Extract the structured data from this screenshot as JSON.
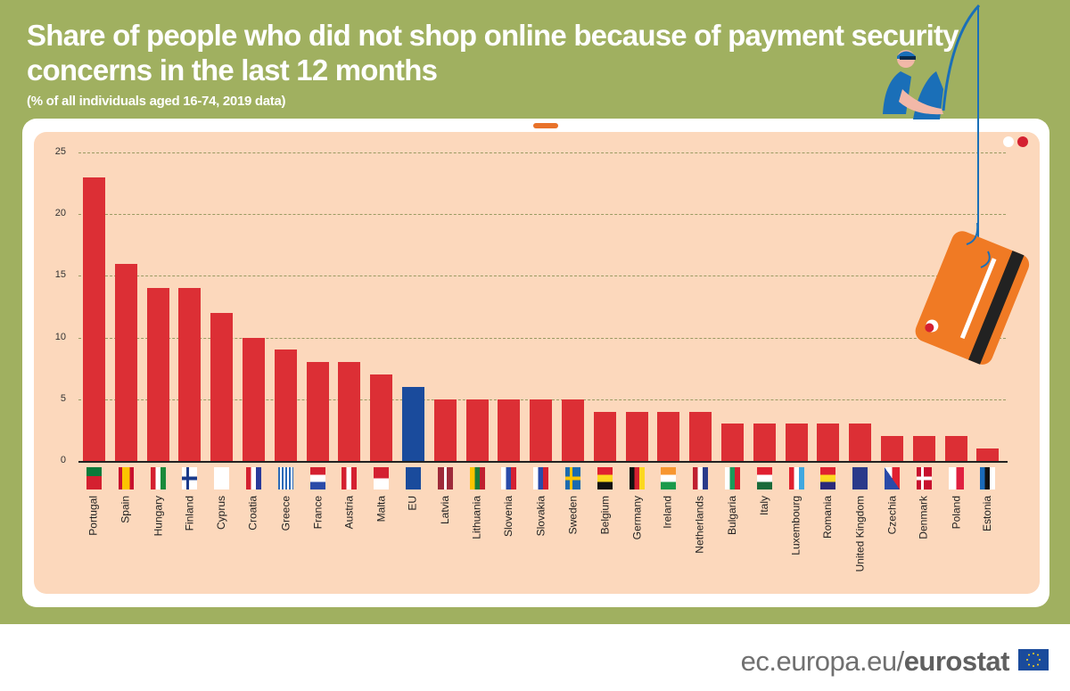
{
  "title": "Share of people who did not shop online because of payment security concerns in the last 12 months",
  "subtitle": "(% of all individuals aged 16-74, 2019 data)",
  "footer": {
    "url_prefix": "ec.europa.eu/",
    "brand": "eurostat"
  },
  "colors": {
    "background": "#a0b060",
    "panel": "#fcd8bc",
    "bar": "#dc2f35",
    "eu_bar": "#1a4b9c",
    "card": "#f07a24"
  },
  "chart_data": {
    "type": "bar",
    "title": "Share of people who did not shop online because of payment security concerns in the last 12 months",
    "subtitle": "(% of all individuals aged 16-74, 2019 data)",
    "xlabel": "",
    "ylabel": "%",
    "ylim": [
      0,
      25
    ],
    "yticks": [
      0,
      5,
      10,
      15,
      20,
      25
    ],
    "grid": true,
    "legend": "none",
    "categories": [
      "Portugal",
      "Spain",
      "Hungary",
      "Finland",
      "Cyprus",
      "Croatia",
      "Greece",
      "France",
      "Austria",
      "Malta",
      "EU",
      "Latvia",
      "Lithuania",
      "Slovenia",
      "Slovakia",
      "Sweden",
      "Belgium",
      "Germany",
      "Ireland",
      "Netherlands",
      "Bulgaria",
      "Italy",
      "Luxembourg",
      "Romania",
      "United Kingdom",
      "Czechia",
      "Denmark",
      "Poland",
      "Estonia"
    ],
    "values": [
      23,
      16,
      14,
      14,
      12,
      10,
      9,
      8,
      8,
      7,
      6,
      5,
      5,
      5,
      5,
      5,
      4,
      4,
      4,
      4,
      3,
      3,
      3,
      3,
      3,
      2,
      2,
      2,
      1
    ],
    "highlight": {
      "EU": "#1a4b9c"
    }
  }
}
